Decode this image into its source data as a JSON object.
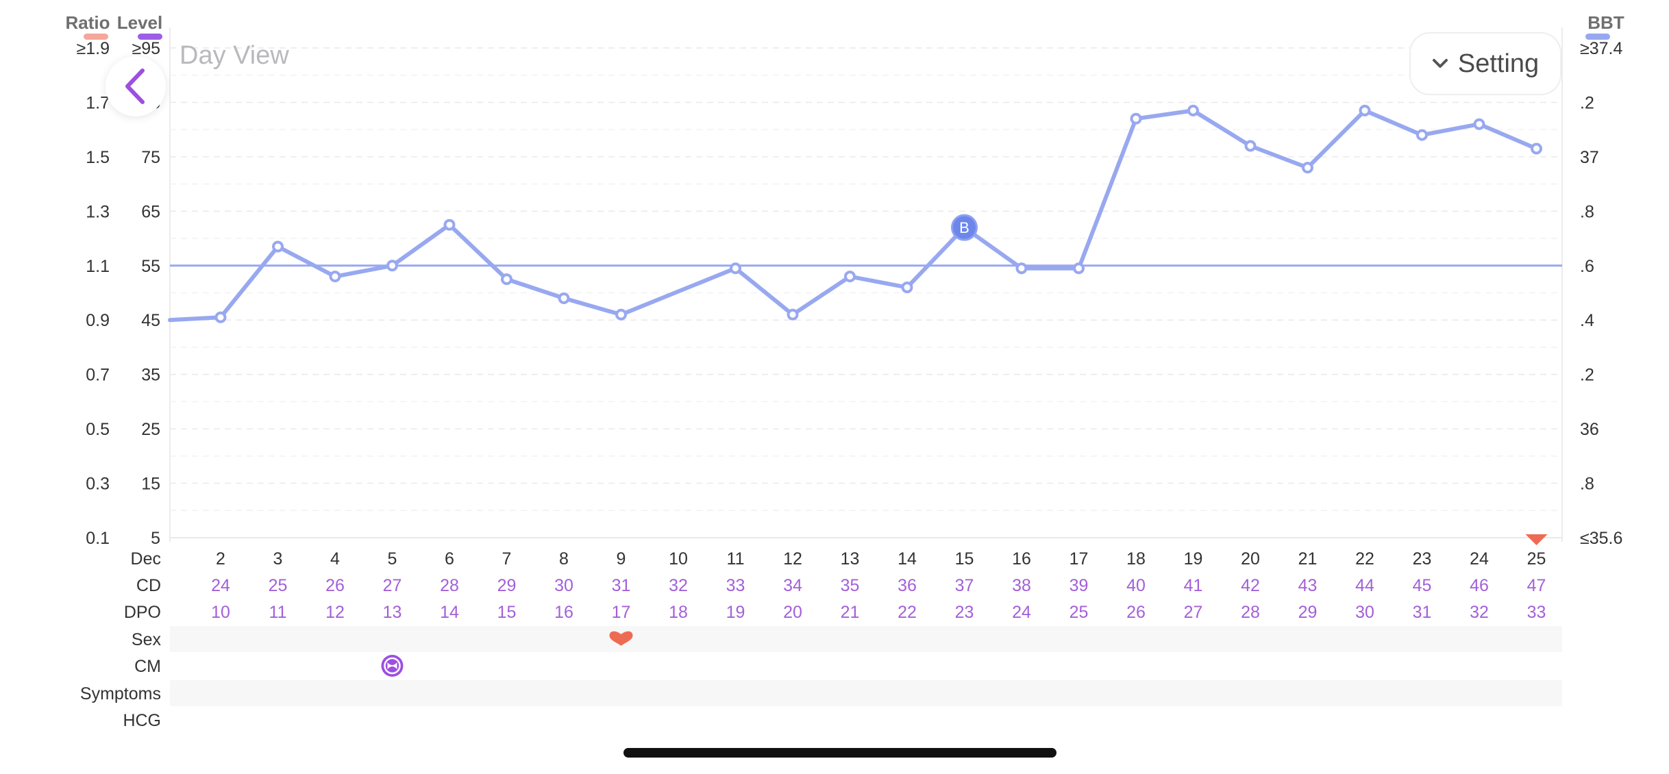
{
  "header": {
    "title": "Day View",
    "setting_label": "Setting",
    "left_axis_titles": {
      "ratio": "Ratio",
      "level": "Level"
    },
    "right_axis_title": "BBT"
  },
  "colors": {
    "ratio": "#f4a79a",
    "level": "#9d5ee6",
    "bbt": "#98a8f0",
    "bbt_marker": "#6c86ea",
    "row_purple": "#a35fd8",
    "sex": "#ee6b53",
    "cm": "#9d4fe0",
    "text": "#333333"
  },
  "icons": {
    "back": "chevron-left-icon",
    "setting": "chevron-down-icon",
    "sex": "heart-icon",
    "cm": "cervical-mucus-icon",
    "offscale": "triangle-down-icon"
  },
  "chart_data": {
    "type": "line",
    "ylabel_left_ratio": "Ratio",
    "ylabel_left_level": "Level",
    "ylabel_right": "BBT",
    "ratio_ticks": [
      "≥1.9",
      "1.7",
      "1.5",
      "1.3",
      "1.1",
      "0.9",
      "0.7",
      "0.5",
      "0.3",
      "0.1"
    ],
    "level_ticks": [
      "≥95",
      "85",
      "75",
      "65",
      "55",
      "45",
      "35",
      "25",
      "15",
      "5"
    ],
    "bbt_ticks": [
      "≥37.4",
      ".2",
      "37",
      ".8",
      ".6",
      ".4",
      ".2",
      "36",
      ".8",
      "≤35.6"
    ],
    "ylim_bbt": [
      35.6,
      37.4
    ],
    "grid": true,
    "x_month": "Dec",
    "x": [
      2,
      3,
      4,
      5,
      6,
      7,
      8,
      9,
      10,
      11,
      12,
      13,
      14,
      15,
      16,
      17,
      18,
      19,
      20,
      21,
      22,
      23,
      24,
      25
    ],
    "cd": [
      24,
      25,
      26,
      27,
      28,
      29,
      30,
      31,
      32,
      33,
      34,
      35,
      36,
      37,
      38,
      39,
      40,
      41,
      42,
      43,
      44,
      45,
      46,
      47
    ],
    "dpo": [
      10,
      11,
      12,
      13,
      14,
      15,
      16,
      17,
      18,
      19,
      20,
      21,
      22,
      23,
      24,
      25,
      26,
      27,
      28,
      29,
      30,
      31,
      32,
      33
    ],
    "series": [
      {
        "key": "bbt",
        "values": [
          36.41,
          36.67,
          36.56,
          36.6,
          36.75,
          36.55,
          36.48,
          36.42,
          null,
          36.59,
          36.42,
          36.56,
          36.52,
          36.74,
          36.59,
          36.59,
          37.14,
          37.17,
          37.04,
          36.96,
          37.17,
          37.08,
          37.12,
          37.03
        ],
        "marker_labels": {
          "15": "B"
        }
      }
    ],
    "coverline": 36.6,
    "leading_value_prev_day": 36.4,
    "offscale_low_days": [
      25
    ],
    "rows": {
      "month_label": "Dec",
      "cd_label": "CD",
      "dpo_label": "DPO",
      "sex_label": "Sex",
      "cm_label": "CM",
      "symptoms_label": "Symptoms",
      "hcg_label": "HCG",
      "sex_days": [
        9
      ],
      "cm_days": [
        5
      ]
    }
  }
}
